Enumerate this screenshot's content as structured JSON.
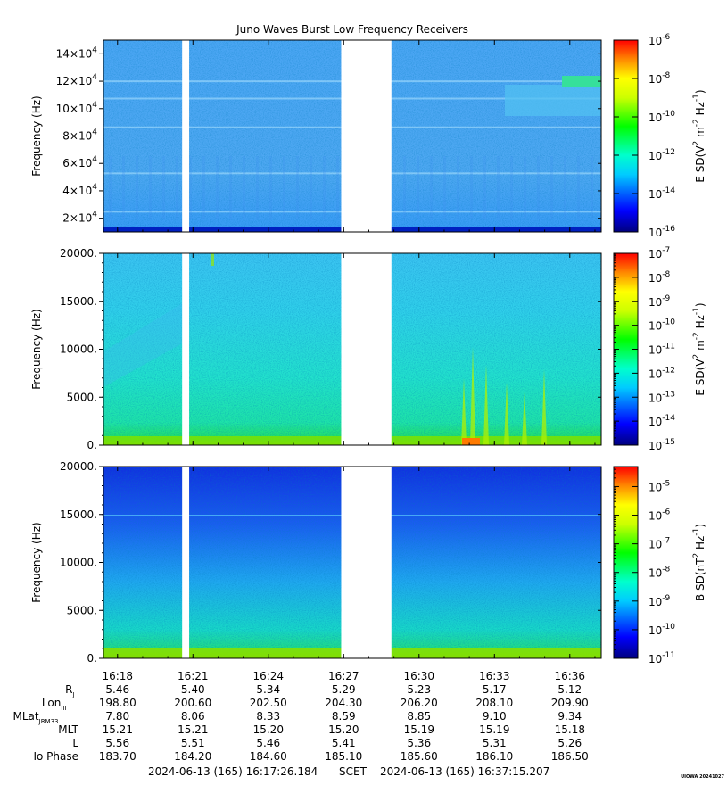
{
  "title": "Juno Waves Burst Low Frequency Receivers",
  "watermark": "UIOWA 20241027",
  "scet_label": "SCET",
  "time_start": "2024-06-13 (165) 16:17:26.184",
  "time_end": "2024-06-13 (165) 16:37:15.207",
  "chart_data": [
    {
      "type": "heatmap",
      "name": "panel-1",
      "ylabel": "Frequency (Hz)",
      "yticks": [
        {
          "value": 20000,
          "mantissa": "2×10",
          "exp": "4"
        },
        {
          "value": 40000,
          "mantissa": "4×10",
          "exp": "4"
        },
        {
          "value": 60000,
          "mantissa": "6×10",
          "exp": "4"
        },
        {
          "value": 80000,
          "mantissa": "8×10",
          "exp": "4"
        },
        {
          "value": 100000,
          "mantissa": "10×10",
          "exp": "4"
        },
        {
          "value": 120000,
          "mantissa": "12×10",
          "exp": "4"
        },
        {
          "value": 140000,
          "mantissa": "14×10",
          "exp": "4"
        }
      ],
      "ylim": [
        10000,
        150000
      ],
      "colorbar_label": "E SD(V² m⁻² Hz⁻¹)",
      "colorbar_label_parts": [
        "E SD(V",
        "2",
        " m",
        "-2",
        " Hz",
        "-1",
        ")"
      ],
      "colorbar_ticks": [
        {
          "exp": "-6",
          "value": -6
        },
        {
          "exp": "-8",
          "value": -8
        },
        {
          "exp": "-10",
          "value": -10
        },
        {
          "exp": "-12",
          "value": -12
        },
        {
          "exp": "-14",
          "value": -14
        },
        {
          "exp": "-16",
          "value": -16
        }
      ],
      "colorbar_range": [
        -16,
        -6
      ],
      "colorbar_minor": false
    },
    {
      "type": "heatmap",
      "name": "panel-2",
      "ylabel": "Frequency (Hz)",
      "yticks": [
        {
          "value": 0,
          "label": "0."
        },
        {
          "value": 5000,
          "label": "5000."
        },
        {
          "value": 10000,
          "label": "10000."
        },
        {
          "value": 15000,
          "label": "15000."
        },
        {
          "value": 20000,
          "label": "20000."
        }
      ],
      "ylim": [
        0,
        20000
      ],
      "colorbar_label": "E SD(V² m⁻² Hz⁻¹)",
      "colorbar_label_parts": [
        "E SD(V",
        "2",
        " m",
        "-2",
        " Hz",
        "-1",
        ")"
      ],
      "colorbar_ticks": [
        {
          "exp": "-7",
          "value": -7
        },
        {
          "exp": "-8",
          "value": -8
        },
        {
          "exp": "-9",
          "value": -9
        },
        {
          "exp": "-10",
          "value": -10
        },
        {
          "exp": "-11",
          "value": -11
        },
        {
          "exp": "-12",
          "value": -12
        },
        {
          "exp": "-13",
          "value": -13
        },
        {
          "exp": "-14",
          "value": -14
        },
        {
          "exp": "-15",
          "value": -15
        }
      ],
      "colorbar_range": [
        -15,
        -7
      ],
      "colorbar_minor": true
    },
    {
      "type": "heatmap",
      "name": "panel-3",
      "ylabel": "Frequency (Hz)",
      "yticks": [
        {
          "value": 0,
          "label": "0."
        },
        {
          "value": 5000,
          "label": "5000."
        },
        {
          "value": 10000,
          "label": "10000."
        },
        {
          "value": 15000,
          "label": "15000."
        },
        {
          "value": 20000,
          "label": "20000."
        }
      ],
      "ylim": [
        0,
        20000
      ],
      "colorbar_label": "B SD(nT² Hz⁻¹)",
      "colorbar_label_parts": [
        "B SD(nT",
        "2",
        " Hz",
        "-1",
        ")"
      ],
      "colorbar_ticks": [
        {
          "exp": "-5",
          "value": -5
        },
        {
          "exp": "-6",
          "value": -6
        },
        {
          "exp": "-7",
          "value": -7
        },
        {
          "exp": "-8",
          "value": -8
        },
        {
          "exp": "-9",
          "value": -9
        },
        {
          "exp": "-10",
          "value": -10
        },
        {
          "exp": "-11",
          "value": -11
        }
      ],
      "colorbar_range": [
        -11,
        -4.3
      ],
      "colorbar_minor": true
    }
  ],
  "time_axis": {
    "xlim_minutes": [
      17.44,
      37.25
    ],
    "data_gaps_minutes": [
      [
        20.57,
        20.85
      ],
      [
        26.9,
        28.9
      ]
    ],
    "times": [
      "16:18",
      "16:21",
      "16:24",
      "16:27",
      "16:30",
      "16:33",
      "16:36"
    ],
    "time_minutes": [
      18,
      21,
      24,
      27,
      30,
      33,
      36
    ]
  },
  "ephemeris": [
    {
      "label": "R",
      "sub": "J",
      "values": [
        "5.46",
        "5.40",
        "5.34",
        "5.29",
        "5.23",
        "5.17",
        "5.12"
      ]
    },
    {
      "label": "Lon",
      "sub": "III",
      "values": [
        "198.80",
        "200.60",
        "202.50",
        "204.30",
        "206.20",
        "208.10",
        "209.90"
      ]
    },
    {
      "label": "MLat",
      "sub": "JRM33",
      "values": [
        "7.80",
        "8.06",
        "8.33",
        "8.59",
        "8.85",
        "9.10",
        "9.34"
      ]
    },
    {
      "label": "MLT",
      "sub": "",
      "values": [
        "15.21",
        "15.21",
        "15.20",
        "15.20",
        "15.19",
        "15.19",
        "15.18"
      ]
    },
    {
      "label": "L",
      "sub": "",
      "values": [
        "5.56",
        "5.51",
        "5.46",
        "5.41",
        "5.36",
        "5.31",
        "5.26"
      ]
    },
    {
      "label": "Io Phase",
      "sub": "",
      "values": [
        "183.70",
        "184.20",
        "184.60",
        "185.10",
        "185.60",
        "186.10",
        "186.50"
      ]
    }
  ]
}
